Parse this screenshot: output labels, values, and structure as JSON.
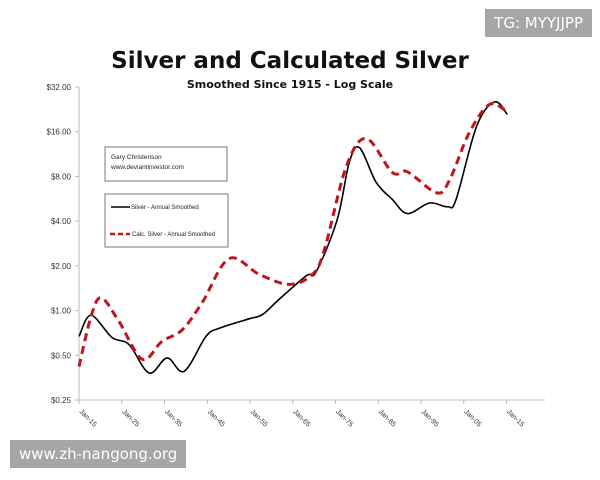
{
  "watermarks": {
    "top_right": "TG: MYYJJPP",
    "bottom_left": "www.zh-nangong.org"
  },
  "chart_data": {
    "type": "line",
    "title": "Silver and Calculated Silver",
    "subtitle": "Smoothed Since 1915 - Log Scale",
    "xlabel": "",
    "ylabel": "",
    "y_scale": "log2",
    "ylim": [
      0.25,
      32
    ],
    "xlim": [
      1915,
      2024
    ],
    "y_ticks": [
      {
        "v": 32,
        "label": "$32.00"
      },
      {
        "v": 16,
        "label": "$16.00"
      },
      {
        "v": 8,
        "label": "$8.00"
      },
      {
        "v": 4,
        "label": "$4.00"
      },
      {
        "v": 2,
        "label": "$2.00"
      },
      {
        "v": 1,
        "label": "$1.00"
      },
      {
        "v": 0.5,
        "label": "$0.50"
      },
      {
        "v": 0.25,
        "label": "$0.25"
      }
    ],
    "x_ticks": [
      {
        "v": 1915,
        "label": "Jan-15"
      },
      {
        "v": 1925,
        "label": "Jan-25"
      },
      {
        "v": 1935,
        "label": "Jan-35"
      },
      {
        "v": 1945,
        "label": "Jan-45"
      },
      {
        "v": 1955,
        "label": "Jan-55"
      },
      {
        "v": 1965,
        "label": "Jan-65"
      },
      {
        "v": 1975,
        "label": "Jan-75"
      },
      {
        "v": 1985,
        "label": "Jan-85"
      },
      {
        "v": 1995,
        "label": "Jan-95"
      },
      {
        "v": 2005,
        "label": "Jan-05"
      },
      {
        "v": 2015,
        "label": "Jan-15"
      }
    ],
    "grid": false,
    "annotation": {
      "line1": "Gary Christenson",
      "line2": "www.deviantinvestor.com"
    },
    "legend_placement": "left",
    "series": [
      {
        "name": "Silver - Annual Smoothed",
        "color": "#000000",
        "style": "solid",
        "points": [
          [
            1915,
            0.67
          ],
          [
            1917.8,
            0.93
          ],
          [
            1922.7,
            0.66
          ],
          [
            1926.7,
            0.59
          ],
          [
            1931.4,
            0.38
          ],
          [
            1935.6,
            0.48
          ],
          [
            1939.6,
            0.39
          ],
          [
            1944.7,
            0.67
          ],
          [
            1947.8,
            0.76
          ],
          [
            1954.8,
            0.88
          ],
          [
            1957.9,
            0.94
          ],
          [
            1961.8,
            1.19
          ],
          [
            1968.2,
            1.72
          ],
          [
            1970.5,
            1.83
          ],
          [
            1975.4,
            4.1
          ],
          [
            1978.2,
            9.9
          ],
          [
            1980.6,
            12.5
          ],
          [
            1984.5,
            7.3
          ],
          [
            1988.3,
            5.6
          ],
          [
            1991.8,
            4.5
          ],
          [
            1997,
            5.3
          ],
          [
            2001.2,
            5.0
          ],
          [
            2003.2,
            5.6
          ],
          [
            2008,
            17.4
          ],
          [
            2012.2,
            25.4
          ],
          [
            2015.2,
            20.9
          ]
        ]
      },
      {
        "name": "Calc. Silver - Annual Smoothed",
        "color": "#c0151b",
        "style": "dashed",
        "points": [
          [
            1915,
            0.42
          ],
          [
            1917.8,
            0.91
          ],
          [
            1920.2,
            1.22
          ],
          [
            1924.4,
            0.84
          ],
          [
            1929.8,
            0.47
          ],
          [
            1934.4,
            0.62
          ],
          [
            1939.1,
            0.74
          ],
          [
            1943.8,
            1.13
          ],
          [
            1950.1,
            2.24
          ],
          [
            1957.2,
            1.75
          ],
          [
            1964.2,
            1.5
          ],
          [
            1969.6,
            1.75
          ],
          [
            1972.4,
            2.57
          ],
          [
            1977.5,
            9.3
          ],
          [
            1982.2,
            14.4
          ],
          [
            1988.3,
            8.5
          ],
          [
            1991.8,
            8.6
          ],
          [
            1998.7,
            6.2
          ],
          [
            2001.7,
            7.6
          ],
          [
            2006.3,
            15.8
          ],
          [
            2011,
            24.4
          ],
          [
            2015,
            22
          ]
        ]
      }
    ]
  }
}
